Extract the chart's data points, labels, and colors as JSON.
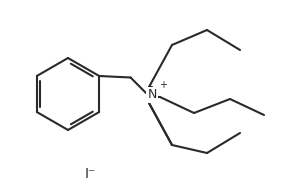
{
  "bg_color": "#ffffff",
  "line_color": "#2a2a2a",
  "line_width": 1.5,
  "font_size_N": 9,
  "font_size_I": 9,
  "label_color": "#2a2a2a",
  "figure_width": 2.85,
  "figure_height": 1.94,
  "dpi": 100,
  "N_label": "N",
  "N_charge": "+",
  "I_label": "I⁻"
}
